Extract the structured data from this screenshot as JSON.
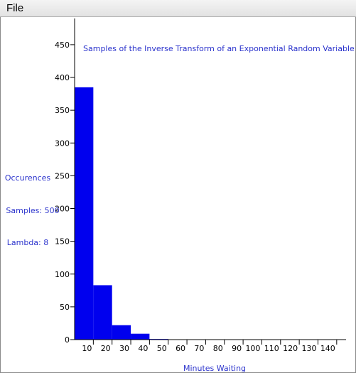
{
  "menu": {
    "file_label": "File"
  },
  "side_labels": {
    "occurences": "Occurences",
    "samples": "Samples: 500",
    "lambda": "Lambda: 8"
  },
  "colors": {
    "bar": "#0000ee",
    "label": "#2b33cc",
    "axis": "#000000"
  },
  "chart_data": {
    "type": "bar",
    "title": "Samples of the Inverse Transform of an Exponential Random Variable",
    "xlabel": "Minutes Waiting",
    "ylabel": "Occurences",
    "categories": [
      "10",
      "20",
      "30",
      "40",
      "50",
      "60",
      "70",
      "80",
      "90",
      "100",
      "110",
      "120",
      "130",
      "140"
    ],
    "values": [
      385,
      83,
      22,
      9,
      1,
      0,
      0,
      0,
      0,
      0,
      0,
      0,
      0,
      0
    ],
    "xlim": [
      0,
      145
    ],
    "ylim": [
      0,
      490
    ],
    "yticks": [
      0,
      50,
      100,
      150,
      200,
      250,
      300,
      350,
      400,
      450
    ],
    "grid": false
  }
}
